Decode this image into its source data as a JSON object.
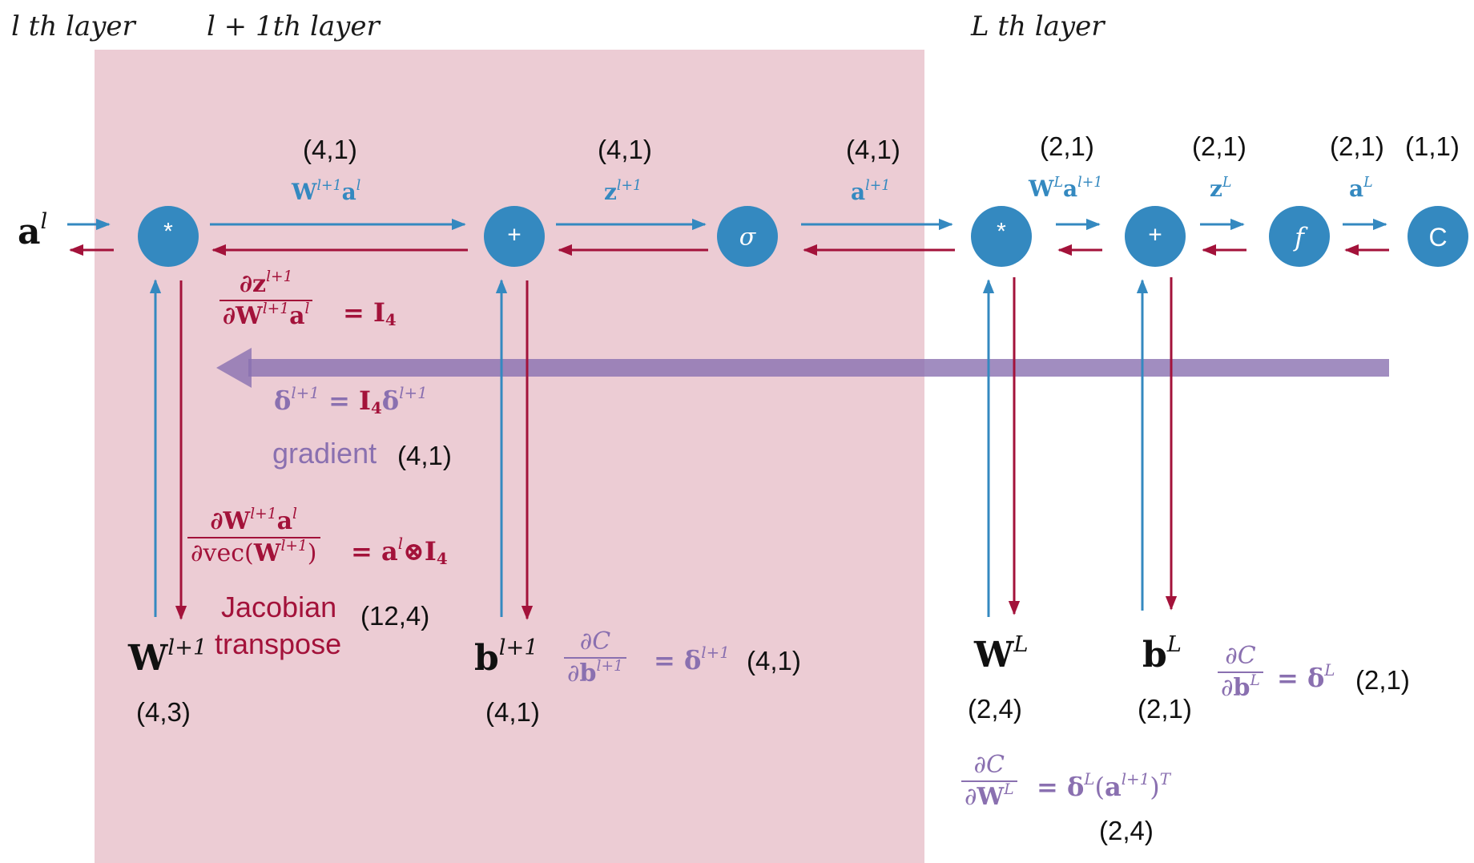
{
  "layer_labels": {
    "l": "l th layer",
    "l1": "l + 1th layer",
    "L": "L th layer"
  },
  "nodes": {
    "mul1": "*",
    "add1": "+",
    "sigma": "σ",
    "mul2": "*",
    "add2": "+",
    "f": "f",
    "cost": "C"
  },
  "dims": {
    "top_wa": "(4,1)",
    "top_z": "(4,1)",
    "top_a": "(4,1)",
    "top_wal": "(2,1)",
    "top_zl": "(2,1)",
    "top_al": "(2,1)",
    "top_c": "(1,1)",
    "gradient": "(4,1)",
    "jacobian": "(12,4)",
    "w_l1": "(4,3)",
    "b_l1": "(4,1)",
    "db_l1": "(4,1)",
    "w_L": "(2,4)",
    "b_L": "(2,1)",
    "db_L": "(2,1)",
    "dw_L": "(2,4)"
  },
  "labels": {
    "gradient_word": "gradient",
    "jacobian_word": "Jacobian",
    "transpose_word": "transpose"
  },
  "colors": {
    "blue": "#3489c0",
    "red": "#a3123a",
    "purple": "#8a70b0",
    "region": "#ecccd4"
  }
}
